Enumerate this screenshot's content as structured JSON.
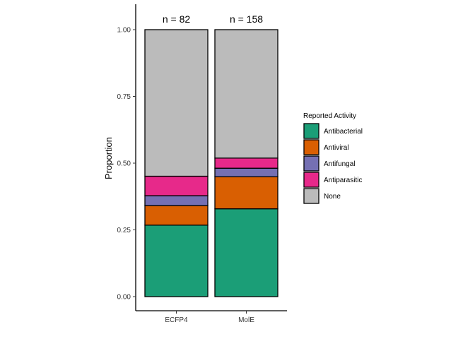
{
  "chart_data": {
    "type": "bar",
    "stacked": true,
    "categories": [
      "ECFP4",
      "MolE"
    ],
    "ylabel": "Proportion",
    "xlabel": "",
    "ylim": [
      0,
      1
    ],
    "yticks": [
      "0.00",
      "0.25",
      "0.50",
      "0.75",
      "1.00"
    ],
    "annotations": [
      "n = 82",
      "n = 158"
    ],
    "legend": {
      "title": "Reported Activity",
      "position": "right"
    },
    "series": [
      {
        "name": "Antibacterial",
        "color": "#1B9E77",
        "values": [
          0.268,
          0.329
        ]
      },
      {
        "name": "Antiviral",
        "color": "#D95F02",
        "values": [
          0.073,
          0.12
        ]
      },
      {
        "name": "Antifungal",
        "color": "#7570B3",
        "values": [
          0.037,
          0.032
        ]
      },
      {
        "name": "Antiparasitic",
        "color": "#E7298A",
        "values": [
          0.073,
          0.038
        ]
      },
      {
        "name": "None",
        "color": "#BBBBBB",
        "values": [
          0.549,
          0.481
        ]
      }
    ],
    "grid": false
  }
}
